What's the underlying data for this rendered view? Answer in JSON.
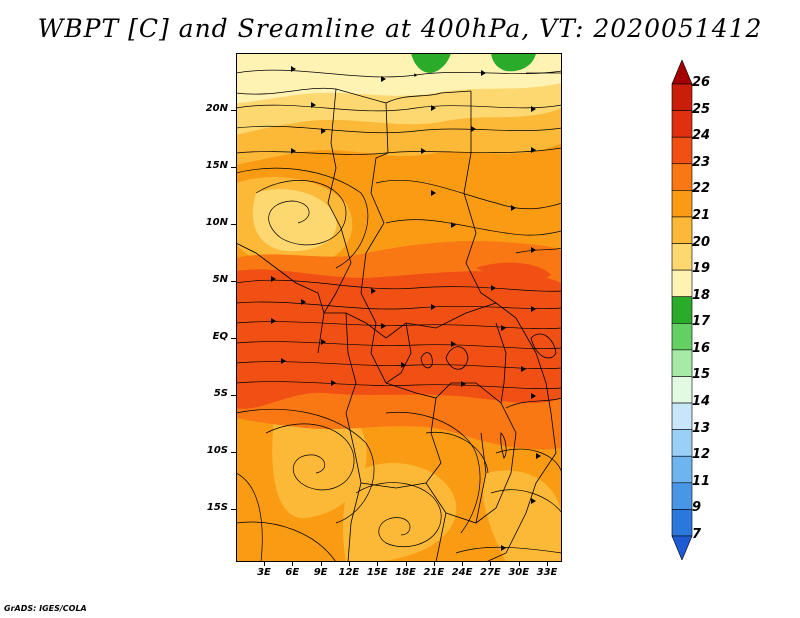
{
  "title": "WBPT [C] and Sreamline at 400hPa, VT: 2020051412",
  "lat_labels": [
    "20N",
    "15N",
    "10N",
    "5N",
    "EQ",
    "5S",
    "10S",
    "15S"
  ],
  "lon_labels": [
    "3E",
    "6E",
    "9E",
    "12E",
    "15E",
    "18E",
    "21E",
    "24E",
    "27E",
    "30E",
    "33E"
  ],
  "colorbar": {
    "labels": [
      "26",
      "25",
      "24",
      "23",
      "22",
      "21",
      "20",
      "19",
      "18",
      "17",
      "16",
      "15",
      "14",
      "13",
      "12",
      "11",
      "9",
      "7"
    ],
    "colors": [
      "#a50000",
      "#c81e0a",
      "#e1300f",
      "#f05014",
      "#fa7814",
      "#fa9b14",
      "#fcb937",
      "#fdd770",
      "#fff3b4",
      "#2aac2a",
      "#64d064",
      "#a7eaa7",
      "#e1fae1",
      "#c8e6fa",
      "#9ad0f6",
      "#6eb4ee",
      "#4a96e6",
      "#2a78dc",
      "#1e5ad2"
    ]
  },
  "map": {
    "colors": {
      "c19": "#fdd770",
      "c20": "#fcb937",
      "c21": "#fa9b14",
      "c22": "#fa7814",
      "c23": "#f05014",
      "c18": "#fff3b4",
      "c17": "#2aac2a"
    }
  },
  "footer": "GrADS: IGES/COLA"
}
